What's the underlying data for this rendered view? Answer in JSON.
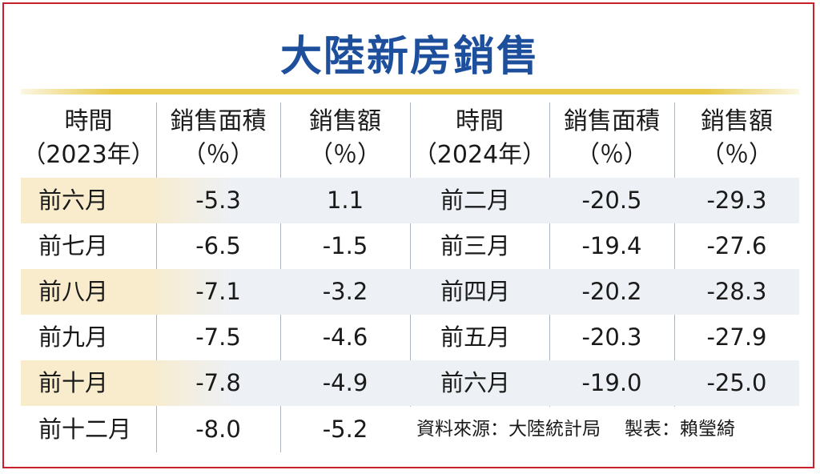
{
  "title": "大陸新房銷售",
  "headers": {
    "time_2023": [
      "時間",
      "（2023年）"
    ],
    "area_2023": [
      "銷售面積",
      "（％）"
    ],
    "amount_2023": [
      "銷售額",
      "（％）"
    ],
    "time_2024": [
      "時間",
      "（2024年）"
    ],
    "area_2024": [
      "銷售面積",
      "（％）"
    ],
    "amount_2024": [
      "銷售額",
      "（％）"
    ]
  },
  "rows_2023": [
    {
      "period": "前六月",
      "area": "-5.3",
      "amount": "1.1"
    },
    {
      "period": "前七月",
      "area": "-6.5",
      "amount": "-1.5"
    },
    {
      "period": "前八月",
      "area": "-7.1",
      "amount": "-3.2"
    },
    {
      "period": "前九月",
      "area": "-7.5",
      "amount": "-4.6"
    },
    {
      "period": "前十月",
      "area": "-7.8",
      "amount": "-4.9"
    },
    {
      "period": "前十二月",
      "area": "-8.0",
      "amount": "-5.2"
    }
  ],
  "rows_2024": [
    {
      "period": "前二月",
      "area": "-20.5",
      "amount": "-29.3"
    },
    {
      "period": "前三月",
      "area": "-19.4",
      "amount": "-27.6"
    },
    {
      "period": "前四月",
      "area": "-20.2",
      "amount": "-28.3"
    },
    {
      "period": "前五月",
      "area": "-20.3",
      "amount": "-27.9"
    },
    {
      "period": "前六月",
      "area": "-19.0",
      "amount": "-25.0"
    }
  ],
  "footer": {
    "source": "資料來源：大陸統計局",
    "credit": "製表：賴瑩綺"
  },
  "colors": {
    "title": "#1d4f9c",
    "rule": "#e7c744",
    "frame": "#c8202a",
    "row_shade": "#edf0f4",
    "label_shade": "#f8eccd"
  }
}
